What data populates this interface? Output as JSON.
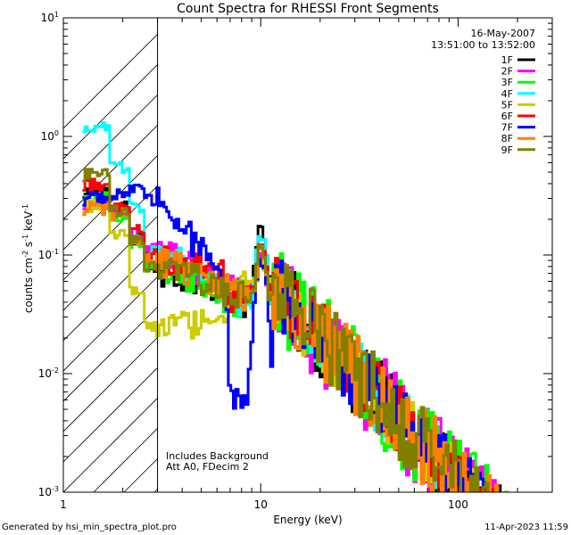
{
  "chart_data": {
    "type": "line",
    "title": "Count Spectra for RHESSI Front Segments",
    "xlabel": "Energy (keV)",
    "ylabel": "counts cm⁻² s⁻¹ keV⁻¹",
    "ylabel_parts": {
      "base": "counts cm",
      "exp1": "-2",
      "mid": " s",
      "exp2": "-1",
      "unit": " keV",
      "exp3": "-1"
    },
    "x_scale": "log",
    "y_scale": "log",
    "xlim": [
      1,
      300
    ],
    "ylim": [
      0.001,
      10
    ],
    "x_ticks": [
      {
        "value": 1,
        "label": "1"
      },
      {
        "value": 10,
        "label": "10"
      },
      {
        "value": 100,
        "label": "100"
      }
    ],
    "y_ticks": [
      {
        "value": 0.001,
        "base": "10",
        "exp": "-3"
      },
      {
        "value": 0.01,
        "base": "10",
        "exp": "-2"
      },
      {
        "value": 0.1,
        "base": "10",
        "exp": "-1"
      },
      {
        "value": 1,
        "base": "10",
        "exp": "0"
      },
      {
        "value": 10,
        "base": "10",
        "exp": "1"
      }
    ],
    "excluded_region_below_kev": 3,
    "date": "16-May-2007",
    "time_range": "13:51:00 to 13:52:00",
    "notes": [
      "Includes Background",
      "Att A0, FDecim 2"
    ],
    "legend_position": "top-right",
    "series": [
      {
        "name": "1F",
        "color": "#000000",
        "low": [
          0.35,
          0.25,
          0.14,
          0.075
        ],
        "mid": 0.05,
        "dip": 0.042,
        "peak": 0.17,
        "noise": 0.35
      },
      {
        "name": "2F",
        "color": "#ff00ff",
        "low": [
          0.28,
          0.24,
          0.15,
          0.11
        ],
        "mid": 0.05,
        "dip": 0.05,
        "peak": 0.1,
        "noise": 0.4
      },
      {
        "name": "3F",
        "color": "#00ff00",
        "low": [
          0.3,
          0.22,
          0.13,
          0.08
        ],
        "mid": 0.045,
        "dip": 0.045,
        "peak": 0.11,
        "noise": 0.4
      },
      {
        "name": "4F",
        "color": "#00ffff",
        "low": [
          1.25,
          0.55,
          0.25,
          0.11
        ],
        "mid": 0.045,
        "dip": 0.04,
        "peak": 0.14,
        "noise": 0.3
      },
      {
        "name": "5F",
        "color": "#cccc00",
        "low": [
          0.26,
          0.15,
          0.05,
          0.025
        ],
        "mid": 0.03,
        "dip": 0.06,
        "peak": 0.08,
        "noise": 0.3
      },
      {
        "name": "6F",
        "color": "#ff0000",
        "low": [
          0.4,
          0.26,
          0.16,
          0.1
        ],
        "mid": 0.07,
        "dip": 0.05,
        "peak": 0.12,
        "noise": 0.3
      },
      {
        "name": "7F",
        "color": "#0000ff",
        "low": [
          0.3,
          0.33,
          0.38,
          0.3
        ],
        "mid": 0.045,
        "dip": 0.006,
        "peak": 0.09,
        "noise": 0.3
      },
      {
        "name": "8F",
        "color": "#ff8000",
        "low": [
          0.25,
          0.22,
          0.13,
          0.09
        ],
        "mid": 0.055,
        "dip": 0.05,
        "peak": 0.11,
        "noise": 0.35
      },
      {
        "name": "9F",
        "color": "#808000",
        "low": [
          0.48,
          0.23,
          0.13,
          0.08
        ],
        "mid": 0.05,
        "dip": 0.045,
        "peak": 0.12,
        "noise": 0.35
      }
    ]
  },
  "footer": {
    "left": "Generated by hsi_min_spectra_plot.pro",
    "right": "11-Apr-2023 11:59"
  }
}
